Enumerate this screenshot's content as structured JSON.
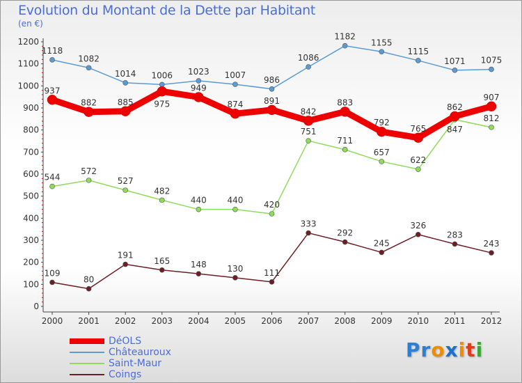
{
  "chart_data": {
    "type": "line",
    "title": "Evolution du Montant de la Dette par Habitant",
    "ylabel": "(en €)",
    "xlabel": "",
    "ylim": [
      0,
      1200
    ],
    "yticks": [
      0,
      100,
      200,
      300,
      400,
      500,
      600,
      700,
      800,
      900,
      1000,
      1100,
      1200
    ],
    "categories": [
      "2000",
      "2001",
      "2002",
      "2003",
      "2004",
      "2005",
      "2006",
      "2007",
      "2008",
      "2009",
      "2010",
      "2011",
      "2012"
    ],
    "grid": false,
    "legend_position": "bottom-left",
    "series": [
      {
        "name": "Châteauroux",
        "color": "#5b9bd5",
        "values": [
          1118,
          1082,
          1014,
          1006,
          1023,
          1007,
          986,
          1086,
          1182,
          1155,
          1115,
          1071,
          1075
        ]
      },
      {
        "name": "Saint-Maur",
        "color": "#8fdc5a",
        "values": [
          544,
          572,
          527,
          482,
          440,
          440,
          420,
          751,
          711,
          657,
          622,
          847,
          812
        ]
      },
      {
        "name": "Coings",
        "color": "#6b1f24",
        "values": [
          109,
          80,
          191,
          165,
          148,
          130,
          111,
          333,
          292,
          245,
          326,
          283,
          243
        ]
      },
      {
        "name": "DéOLS",
        "color": "#ee0000",
        "values": [
          937,
          882,
          885,
          975,
          949,
          874,
          891,
          842,
          883,
          792,
          765,
          862,
          907
        ]
      }
    ],
    "legend_order": [
      "DéOLS",
      "Châteauroux",
      "Saint-Maur",
      "Coings"
    ]
  },
  "logo": {
    "text": "Proxiti",
    "letters": [
      [
        "P",
        "#2d7fd2"
      ],
      [
        "r",
        "#2d7fd2"
      ],
      [
        "o",
        "#f08c00"
      ],
      [
        "x",
        "#1e6fd0"
      ],
      [
        "i",
        "#f08c00"
      ],
      [
        "t",
        "#e03c1e"
      ],
      [
        "i",
        "#3aa832"
      ]
    ]
  }
}
